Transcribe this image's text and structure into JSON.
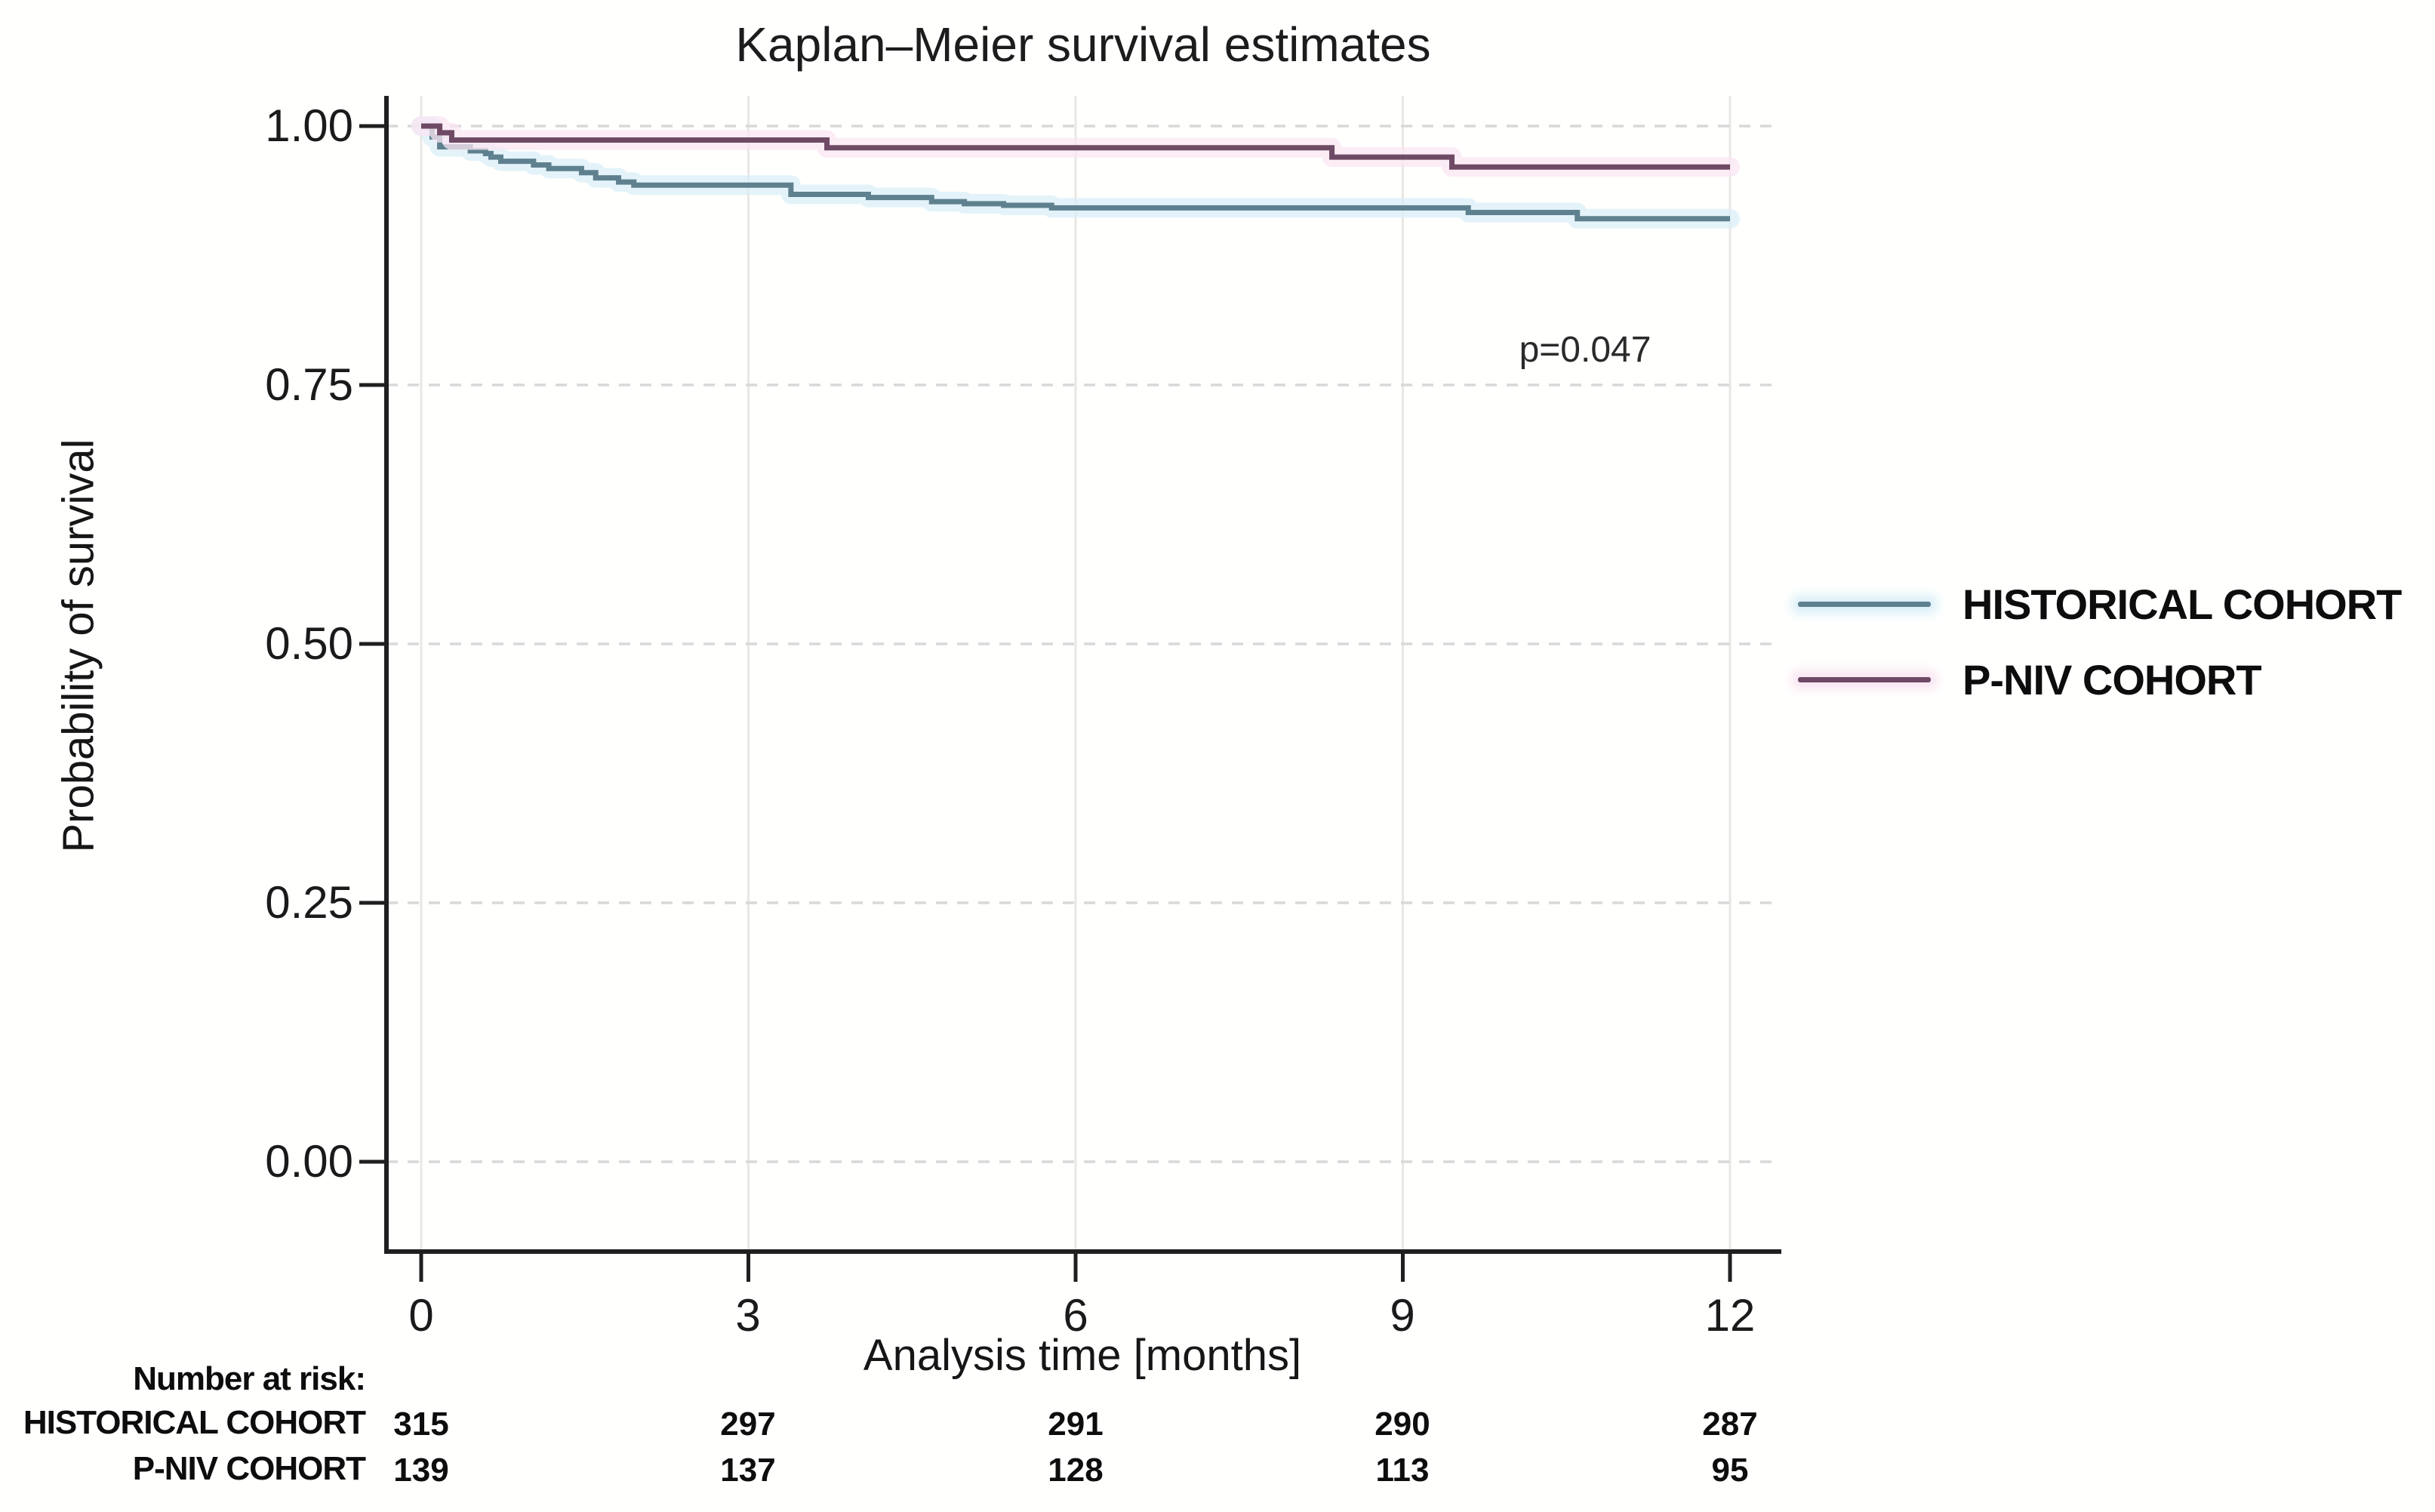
{
  "title": "Kaplan–Meier survival estimates",
  "annotation": {
    "p_value": "p=0.047"
  },
  "axes": {
    "x": {
      "label": "Analysis time [months]",
      "ticks": [
        "0",
        "3",
        "6",
        "9",
        "12"
      ]
    },
    "y": {
      "label": "Probability of survival",
      "ticks": [
        "1.00",
        "0.75",
        "0.50",
        "0.25",
        "0.00"
      ]
    }
  },
  "legend": [
    {
      "label": "HISTORICAL COHORT",
      "color": "#5f818f",
      "halo": "#d9eff7"
    },
    {
      "label": "P-NIV COHORT",
      "color": "#6f4a64",
      "halo": "#f9e5f1"
    }
  ],
  "risk_table": {
    "header": "Number at risk:",
    "rows": [
      {
        "label": "HISTORICAL COHORT",
        "values": [
          "315",
          "297",
          "291",
          "290",
          "287"
        ]
      },
      {
        "label": "P-NIV COHORT",
        "values": [
          "139",
          "137",
          "128",
          "113",
          "95"
        ]
      }
    ]
  },
  "chart_data": {
    "type": "line",
    "subtype": "kaplan-meier-step",
    "title": "Kaplan–Meier survival estimates",
    "xlabel": "Analysis time [months]",
    "ylabel": "Probability of survival",
    "xlim": [
      0,
      12
    ],
    "ylim": [
      0.0,
      1.0
    ],
    "x_ticks": [
      0,
      3,
      6,
      9,
      12
    ],
    "y_ticks": [
      1.0,
      0.75,
      0.5,
      0.25,
      0.0
    ],
    "grid": {
      "horizontal": "dashed",
      "vertical": "solid-light"
    },
    "legend_position": "right-outside",
    "step": "post",
    "x_end": 12,
    "annotation": {
      "text": "p=0.047",
      "x": 10.6,
      "y": 0.78
    },
    "series": [
      {
        "name": "HISTORICAL COHORT",
        "color": "#5f818f",
        "halo": "#d9eff7",
        "points": [
          [
            0,
            1.0
          ],
          [
            0.1,
            0.9895
          ],
          [
            0.17,
            0.98
          ],
          [
            0.45,
            0.976
          ],
          [
            0.59,
            0.9735
          ],
          [
            0.64,
            0.97
          ],
          [
            0.73,
            0.966
          ],
          [
            1.03,
            0.9625
          ],
          [
            1.17,
            0.959
          ],
          [
            1.47,
            0.955
          ],
          [
            1.6,
            0.95
          ],
          [
            1.81,
            0.946
          ],
          [
            1.95,
            0.943
          ],
          [
            3.39,
            0.934
          ],
          [
            4.1,
            0.931
          ],
          [
            4.68,
            0.927
          ],
          [
            4.98,
            0.925
          ],
          [
            5.34,
            0.9235
          ],
          [
            5.78,
            0.921
          ],
          [
            9.6,
            0.9165
          ],
          [
            10.6,
            0.9105
          ]
        ]
      },
      {
        "name": "P-NIV COHORT",
        "color": "#6f4a64",
        "halo": "#f9e5f1",
        "points": [
          [
            0,
            1.0
          ],
          [
            0.17,
            0.9935
          ],
          [
            0.28,
            0.9865
          ],
          [
            3.72,
            0.979
          ],
          [
            8.35,
            0.97
          ],
          [
            9.45,
            0.9605
          ]
        ]
      }
    ],
    "risk_table": {
      "label": "Number at risk:",
      "time_points": [
        0,
        3,
        6,
        9,
        12
      ],
      "rows": [
        {
          "name": "HISTORICAL COHORT",
          "counts": [
            315,
            297,
            291,
            290,
            287
          ]
        },
        {
          "name": "P-NIV COHORT",
          "counts": [
            139,
            137,
            128,
            113,
            95
          ]
        }
      ]
    }
  },
  "colors": {
    "background": "#fffffe",
    "axis": "#1f1f1f",
    "grid_dashed": "#d8d8d8",
    "grid_vertical": "#e8e7e3",
    "text": "#1a1a1a"
  }
}
